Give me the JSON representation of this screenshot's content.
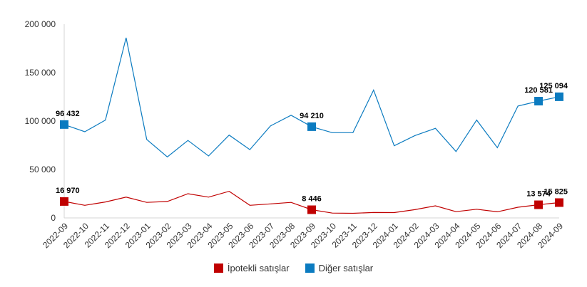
{
  "chart_data": {
    "type": "line",
    "categories": [
      "2022-09",
      "2022-10",
      "2022-11",
      "2022-12",
      "2023-01",
      "2023-02",
      "2023-03",
      "2023-04",
      "2023-05",
      "2023-06",
      "2023-07",
      "2023-08",
      "2023-09",
      "2023-10",
      "2023-11",
      "2023-12",
      "2024-01",
      "2024-02",
      "2024-03",
      "2024-04",
      "2024-05",
      "2024-06",
      "2024-07",
      "2024-08",
      "2024-09"
    ],
    "ylim": [
      0,
      200000
    ],
    "yticks": [
      0,
      50000,
      100000,
      150000,
      200000
    ],
    "ytick_labels": [
      "0",
      "50 000",
      "100 000",
      "150 000",
      "200 000"
    ],
    "grid": false,
    "legend_position": "bottom",
    "series": [
      {
        "name": "İpotekli satışlar",
        "color": "#c00000",
        "values": [
          16970,
          13000,
          16500,
          21500,
          16000,
          17000,
          25000,
          21500,
          27500,
          13000,
          14500,
          16000,
          8446,
          5000,
          4800,
          5600,
          5500,
          8500,
          12500,
          6500,
          9000,
          6300,
          11000,
          13574,
          15825
        ],
        "labels": {
          "0": "16 970",
          "12": "8 446",
          "23": "13 574",
          "24": "15 825"
        }
      },
      {
        "name": "Diğer satışlar",
        "color": "#0b7bc0",
        "values": [
          96432,
          89000,
          101000,
          186000,
          81000,
          63000,
          80000,
          64000,
          85500,
          70500,
          95000,
          106000,
          94210,
          88000,
          88000,
          132000,
          74500,
          85000,
          92500,
          68500,
          101000,
          72500,
          115500,
          120581,
          125094
        ],
        "labels": {
          "0": "96 432",
          "12": "94 210",
          "23": "120 581",
          "24": "125 094"
        }
      }
    ]
  }
}
